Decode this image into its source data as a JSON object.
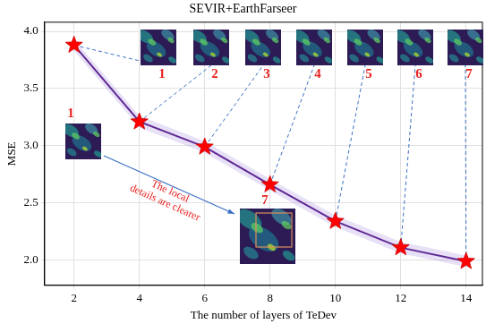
{
  "chart_data": {
    "type": "line",
    "title": "SEVIR+EarthFarseer",
    "x_label": "The number of layers of TeDev",
    "y_label": "MSE",
    "x": [
      2,
      4,
      6,
      8,
      10,
      12,
      14
    ],
    "series": [
      {
        "name": "MSE",
        "color": "#4b0a7d",
        "marker": "star",
        "line_style": "solid",
        "values": [
          3.88,
          3.21,
          2.99,
          2.66,
          2.34,
          2.11,
          1.99
        ],
        "error": [
          0.05,
          0.05,
          0.05,
          0.05,
          0.05,
          0.05,
          0.05
        ]
      }
    ],
    "xlim": [
      1.1,
      14.5
    ],
    "ylim": [
      1.78,
      4.08
    ],
    "xticks": [
      2,
      4,
      6,
      8,
      10,
      12,
      14
    ],
    "yticks": [
      {
        "value": 2,
        "label": "2.0"
      },
      {
        "value": 2.5,
        "label": "2.5"
      },
      {
        "value": 3,
        "label": "3.0"
      },
      {
        "value": 3.5,
        "label": "3.5"
      },
      {
        "value": 4,
        "label": "4.0"
      }
    ],
    "grid": true,
    "annotations": {
      "image_labels": [
        "1",
        "2",
        "3",
        "4",
        "5",
        "6",
        "7"
      ],
      "zoom_labels": [
        "1",
        "7"
      ],
      "note": [
        "The local",
        "details are clearer"
      ]
    }
  }
}
